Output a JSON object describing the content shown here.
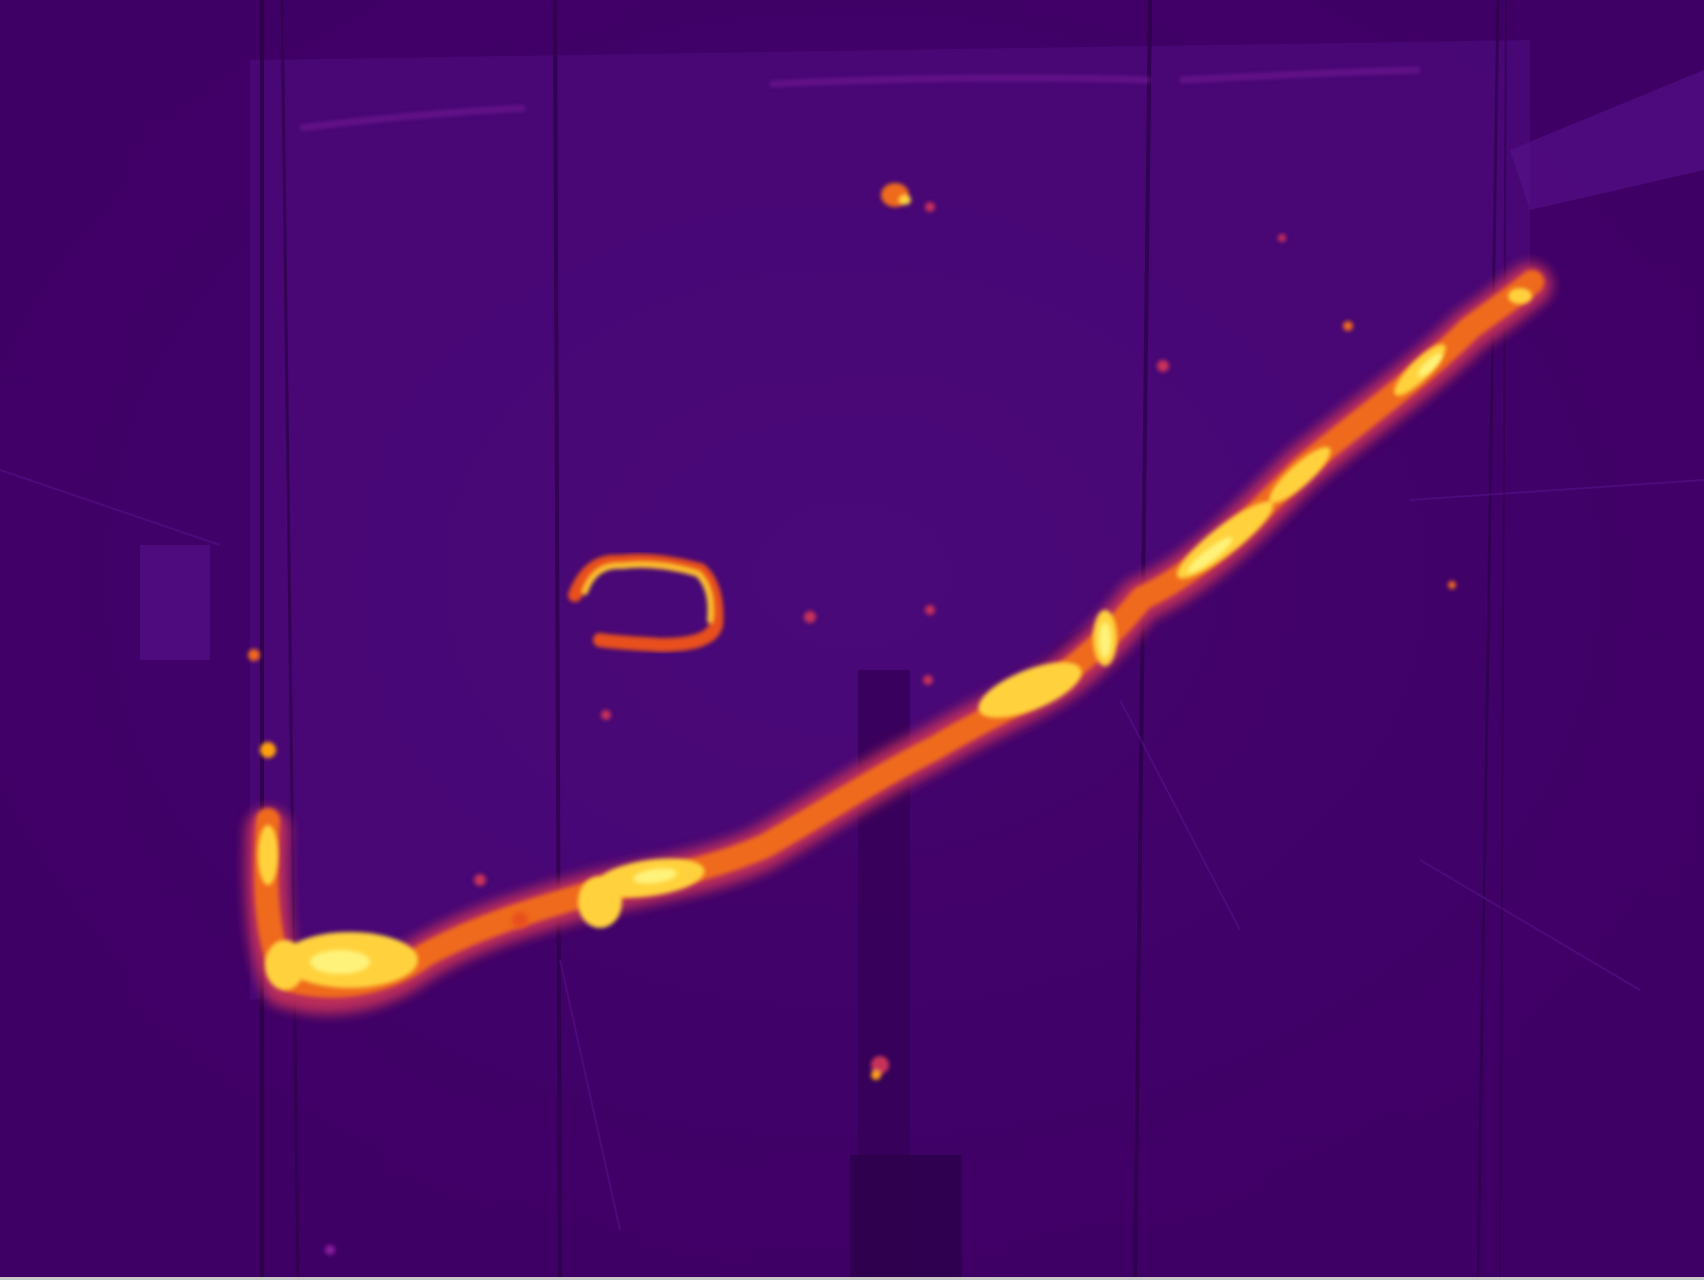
{
  "image": {
    "kind": "thermal-infrared-photo",
    "subject": "heat-signature-along-sloped-edge",
    "palette": {
      "background": "#3f0066",
      "panel": "#4a0a78",
      "panel_light": "#560f86",
      "structure_dark": "#2a0044",
      "warm_low": "#8a1a9e",
      "warm_mid": "#e8501f",
      "warm_high": "#ffb000",
      "hot": "#fff27a",
      "border": "#c8c8c8"
    },
    "icons": []
  }
}
